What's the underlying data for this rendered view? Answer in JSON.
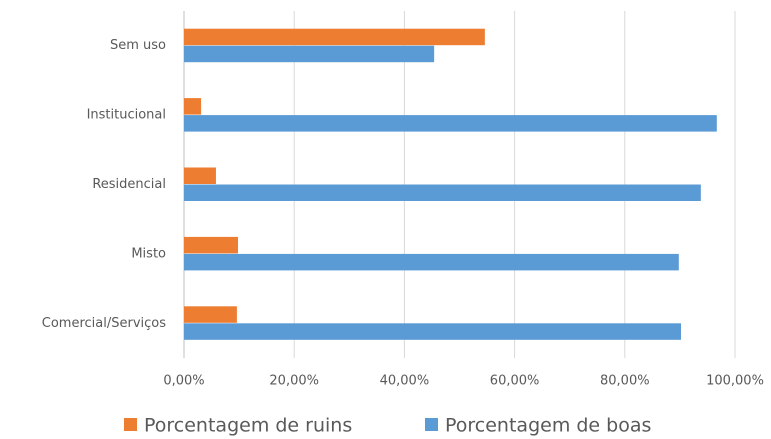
{
  "chart_data": {
    "type": "hbar",
    "categories": [
      "Sem uso",
      "Institucional",
      "Residencial",
      "Misto",
      "Comercial/Serviços"
    ],
    "series": [
      {
        "name": "Porcentagem de ruins",
        "color": "#ed7d31",
        "values": [
          54.6,
          3.1,
          5.8,
          9.8,
          9.6
        ]
      },
      {
        "name": "Porcentagem de boas",
        "color": "#5b9bd5",
        "values": [
          45.4,
          96.7,
          93.8,
          89.8,
          90.2
        ]
      }
    ],
    "xlim": [
      0,
      100
    ],
    "xticks": [
      {
        "value": 0,
        "label": "0,00%"
      },
      {
        "value": 20,
        "label": "20,00%"
      },
      {
        "value": 40,
        "label": "40,00%"
      },
      {
        "value": 60,
        "label": "60,00%"
      },
      {
        "value": 80,
        "label": "80,00%"
      },
      {
        "value": 100,
        "label": "100,00%"
      }
    ],
    "grid": true,
    "legend": "bottom"
  }
}
